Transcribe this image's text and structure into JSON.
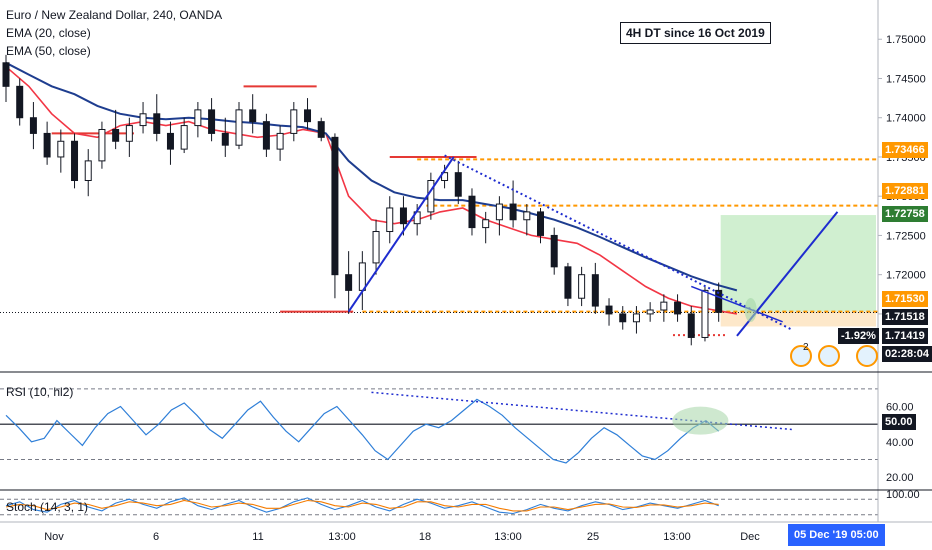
{
  "header": {
    "symbol_line": "Euro / New Zealand Dollar, 240, OANDA",
    "ema20_label": "EMA (20, close)",
    "ema50_label": "EMA (50, close)",
    "annotation": "4H DT since 16 Oct 2019"
  },
  "colors": {
    "candle_up": "#26a69a",
    "candle_down": "#ef5350",
    "candle_body": "#131722",
    "ema20": "#f23645",
    "ema50": "#1e3d8f",
    "rsi": "#2f7fd8",
    "stoch_k": "#2f7fd8",
    "stoch_d": "#f57c00",
    "orange_level": "#ff9800",
    "red_level": "#e53935",
    "trend_blue": "#1e2ccf",
    "target_zone": "#c8ecc8",
    "stop_zone": "#fde6c4",
    "ellipse": "#a5d6a7"
  },
  "chart_data": [
    {
      "type": "line",
      "pane": "price",
      "title": "Euro / New Zealand Dollar, 240, OANDA",
      "ylim": [
        1.7076,
        1.755
      ],
      "y_ticks": [
        "1.75000",
        "1.74500",
        "1.74000",
        "1.73500",
        "1.73000",
        "1.72500",
        "1.72000",
        "1.71500"
      ],
      "x_ticks": [
        "Nov",
        "6",
        "11",
        "13:00",
        "18",
        "13:00",
        "25",
        "13:00",
        "Dec"
      ],
      "series": [
        {
          "name": "EMA (20, close)",
          "points": [
            [
              0,
              1.7465
            ],
            [
              5,
              1.744
            ],
            [
              10,
              1.7405
            ],
            [
              15,
              1.738
            ],
            [
              20,
              1.7375
            ],
            [
              25,
              1.739
            ],
            [
              30,
              1.7395
            ],
            [
              35,
              1.739
            ],
            [
              40,
              1.7395
            ],
            [
              45,
              1.7385
            ],
            [
              50,
              1.738
            ],
            [
              55,
              1.7375
            ],
            [
              60,
              1.7378
            ],
            [
              65,
              1.7385
            ],
            [
              70,
              1.738
            ],
            [
              75,
              1.73
            ],
            [
              80,
              1.727
            ],
            [
              85,
              1.7265
            ],
            [
              90,
              1.727
            ],
            [
              95,
              1.728
            ],
            [
              100,
              1.7285
            ],
            [
              105,
              1.727
            ],
            [
              110,
              1.726
            ],
            [
              115,
              1.725
            ],
            [
              120,
              1.7245
            ],
            [
              125,
              1.724
            ],
            [
              130,
              1.7225
            ],
            [
              135,
              1.7205
            ],
            [
              140,
              1.7185
            ],
            [
              145,
              1.717
            ],
            [
              150,
              1.716
            ],
            [
              155,
              1.7155
            ],
            [
              160,
              1.715
            ]
          ]
        },
        {
          "name": "EMA (50, close)",
          "points": [
            [
              0,
              1.747
            ],
            [
              5,
              1.7455
            ],
            [
              10,
              1.744
            ],
            [
              15,
              1.743
            ],
            [
              20,
              1.7415
            ],
            [
              25,
              1.7405
            ],
            [
              30,
              1.74
            ],
            [
              35,
              1.7398
            ],
            [
              40,
              1.74
            ],
            [
              45,
              1.7398
            ],
            [
              50,
              1.7395
            ],
            [
              55,
              1.7393
            ],
            [
              60,
              1.739
            ],
            [
              65,
              1.7388
            ],
            [
              70,
              1.738
            ],
            [
              75,
              1.7345
            ],
            [
              80,
              1.732
            ],
            [
              85,
              1.7305
            ],
            [
              90,
              1.7298
            ],
            [
              95,
              1.7295
            ],
            [
              100,
              1.7295
            ],
            [
              105,
              1.729
            ],
            [
              110,
              1.7285
            ],
            [
              115,
              1.7278
            ],
            [
              120,
              1.727
            ],
            [
              125,
              1.726
            ],
            [
              130,
              1.7248
            ],
            [
              135,
              1.7235
            ],
            [
              140,
              1.7222
            ],
            [
              145,
              1.721
            ],
            [
              150,
              1.7198
            ],
            [
              155,
              1.7188
            ],
            [
              160,
              1.718
            ]
          ]
        }
      ],
      "candles": [
        [
          0,
          1.747,
          1.748,
          1.742,
          1.744
        ],
        [
          3,
          1.744,
          1.745,
          1.739,
          1.74
        ],
        [
          6,
          1.74,
          1.742,
          1.736,
          1.738
        ],
        [
          9,
          1.738,
          1.7395,
          1.734,
          1.735
        ],
        [
          12,
          1.735,
          1.7385,
          1.733,
          1.737
        ],
        [
          15,
          1.737,
          1.738,
          1.731,
          1.732
        ],
        [
          18,
          1.732,
          1.736,
          1.73,
          1.7345
        ],
        [
          21,
          1.7345,
          1.7395,
          1.7335,
          1.7385
        ],
        [
          24,
          1.7385,
          1.741,
          1.736,
          1.737
        ],
        [
          27,
          1.737,
          1.74,
          1.735,
          1.739
        ],
        [
          30,
          1.739,
          1.742,
          1.738,
          1.7405
        ],
        [
          33,
          1.7405,
          1.743,
          1.737,
          1.738
        ],
        [
          36,
          1.738,
          1.7395,
          1.734,
          1.736
        ],
        [
          39,
          1.736,
          1.74,
          1.7355,
          1.739
        ],
        [
          42,
          1.739,
          1.742,
          1.7375,
          1.741
        ],
        [
          45,
          1.741,
          1.7425,
          1.737,
          1.738
        ],
        [
          48,
          1.738,
          1.74,
          1.735,
          1.7365
        ],
        [
          51,
          1.7365,
          1.742,
          1.736,
          1.741
        ],
        [
          54,
          1.741,
          1.743,
          1.738,
          1.7395
        ],
        [
          57,
          1.7395,
          1.7405,
          1.735,
          1.736
        ],
        [
          60,
          1.736,
          1.739,
          1.7345,
          1.738
        ],
        [
          63,
          1.738,
          1.742,
          1.737,
          1.741
        ],
        [
          66,
          1.741,
          1.7425,
          1.7385,
          1.7395
        ],
        [
          69,
          1.7395,
          1.74,
          1.737,
          1.7375
        ],
        [
          72,
          1.7375,
          1.738,
          1.717,
          1.72
        ],
        [
          75,
          1.72,
          1.723,
          1.715,
          1.718
        ],
        [
          78,
          1.718,
          1.723,
          1.7155,
          1.7215
        ],
        [
          81,
          1.7215,
          1.727,
          1.72,
          1.7255
        ],
        [
          84,
          1.7255,
          1.73,
          1.724,
          1.7285
        ],
        [
          87,
          1.7285,
          1.73,
          1.725,
          1.7265
        ],
        [
          90,
          1.7265,
          1.729,
          1.725,
          1.728
        ],
        [
          93,
          1.728,
          1.733,
          1.727,
          1.732
        ],
        [
          96,
          1.732,
          1.734,
          1.731,
          1.733
        ],
        [
          99,
          1.733,
          1.7345,
          1.729,
          1.73
        ],
        [
          102,
          1.73,
          1.731,
          1.725,
          1.726
        ],
        [
          105,
          1.726,
          1.728,
          1.724,
          1.727
        ],
        [
          108,
          1.727,
          1.73,
          1.725,
          1.729
        ],
        [
          111,
          1.729,
          1.732,
          1.726,
          1.727
        ],
        [
          114,
          1.727,
          1.729,
          1.725,
          1.728
        ],
        [
          117,
          1.728,
          1.7285,
          1.724,
          1.725
        ],
        [
          120,
          1.725,
          1.726,
          1.72,
          1.721
        ],
        [
          123,
          1.721,
          1.7215,
          1.716,
          1.717
        ],
        [
          126,
          1.717,
          1.721,
          1.716,
          1.72
        ],
        [
          129,
          1.72,
          1.7215,
          1.715,
          1.716
        ],
        [
          132,
          1.716,
          1.717,
          1.7135,
          1.715
        ],
        [
          135,
          1.715,
          1.716,
          1.713,
          1.714
        ],
        [
          138,
          1.714,
          1.716,
          1.7125,
          1.715
        ],
        [
          141,
          1.715,
          1.7165,
          1.714,
          1.7155
        ],
        [
          144,
          1.7155,
          1.7175,
          1.714,
          1.7165
        ],
        [
          147,
          1.7165,
          1.7175,
          1.714,
          1.715
        ],
        [
          150,
          1.715,
          1.716,
          1.711,
          1.712
        ],
        [
          153,
          1.712,
          1.7185,
          1.7115,
          1.718
        ],
        [
          156,
          1.718,
          1.719,
          1.714,
          1.7152
        ]
      ],
      "price_tags": [
        {
          "value": "1.73466",
          "color": "#ff9800"
        },
        {
          "value": "1.72881",
          "color": "#ff9800"
        },
        {
          "value": "1.72758",
          "color": "#2e7d32"
        },
        {
          "value": "1.71530",
          "color": "#ff9800"
        },
        {
          "value": "1.71518",
          "color": "#131722"
        },
        {
          "value": "1.71419",
          "color": "#131722"
        },
        {
          "value": "02:28:04",
          "color": "#131722"
        }
      ],
      "change_label": "-1.92%",
      "levels": {
        "orange": [
          1.7347,
          1.7288,
          1.7153
        ],
        "stop": 1.7142,
        "target": 1.7276
      }
    },
    {
      "type": "line",
      "pane": "rsi",
      "title": "RSI (10, hl2)",
      "ylim": [
        15,
        75
      ],
      "y_ticks": [
        "60.00",
        "50.00",
        "40.00",
        "20.00"
      ],
      "current_value": "50.00",
      "series": [
        {
          "name": "RSI (10, hl2)",
          "values": [
            55,
            48,
            40,
            42,
            52,
            45,
            38,
            48,
            56,
            60,
            52,
            44,
            50,
            58,
            62,
            55,
            47,
            42,
            50,
            58,
            63,
            54,
            46,
            40,
            48,
            56,
            60,
            52,
            44,
            35,
            30,
            38,
            46,
            50,
            48,
            52,
            58,
            64,
            60,
            55,
            48,
            42,
            36,
            30,
            28,
            34,
            42,
            48,
            44,
            38,
            32,
            30,
            35,
            42,
            48,
            52,
            46
          ]
        }
      ]
    },
    {
      "type": "line",
      "pane": "stoch",
      "title": "Stoch (14, 3, 1)",
      "ylim": [
        0,
        100
      ],
      "y_ticks": [
        "100.00"
      ],
      "series": [
        {
          "name": "K",
          "values": [
            55,
            70,
            40,
            30,
            60,
            75,
            50,
            35,
            65,
            80,
            60,
            45,
            70,
            85,
            55,
            40,
            60,
            75,
            50,
            30,
            45,
            70,
            85,
            60,
            40,
            55,
            75,
            50,
            35,
            60,
            80,
            65,
            45,
            55,
            70,
            50,
            30,
            25,
            40,
            60,
            45,
            35,
            55,
            70,
            60,
            40,
            50,
            65,
            55,
            45,
            60,
            75,
            55
          ]
        },
        {
          "name": "D",
          "values": [
            50,
            60,
            55,
            40,
            50,
            65,
            60,
            45,
            55,
            70,
            65,
            55,
            60,
            75,
            65,
            50,
            55,
            65,
            60,
            45,
            45,
            60,
            75,
            70,
            55,
            50,
            65,
            60,
            45,
            50,
            70,
            70,
            55,
            50,
            60,
            60,
            45,
            35,
            35,
            50,
            50,
            40,
            50,
            60,
            62,
            50,
            48,
            58,
            58,
            50,
            55,
            65,
            60
          ]
        }
      ]
    }
  ],
  "time_axis": {
    "cursor_date": "05 Dec '19",
    "cursor_time": "05:00",
    "event_badge_count": "2"
  }
}
